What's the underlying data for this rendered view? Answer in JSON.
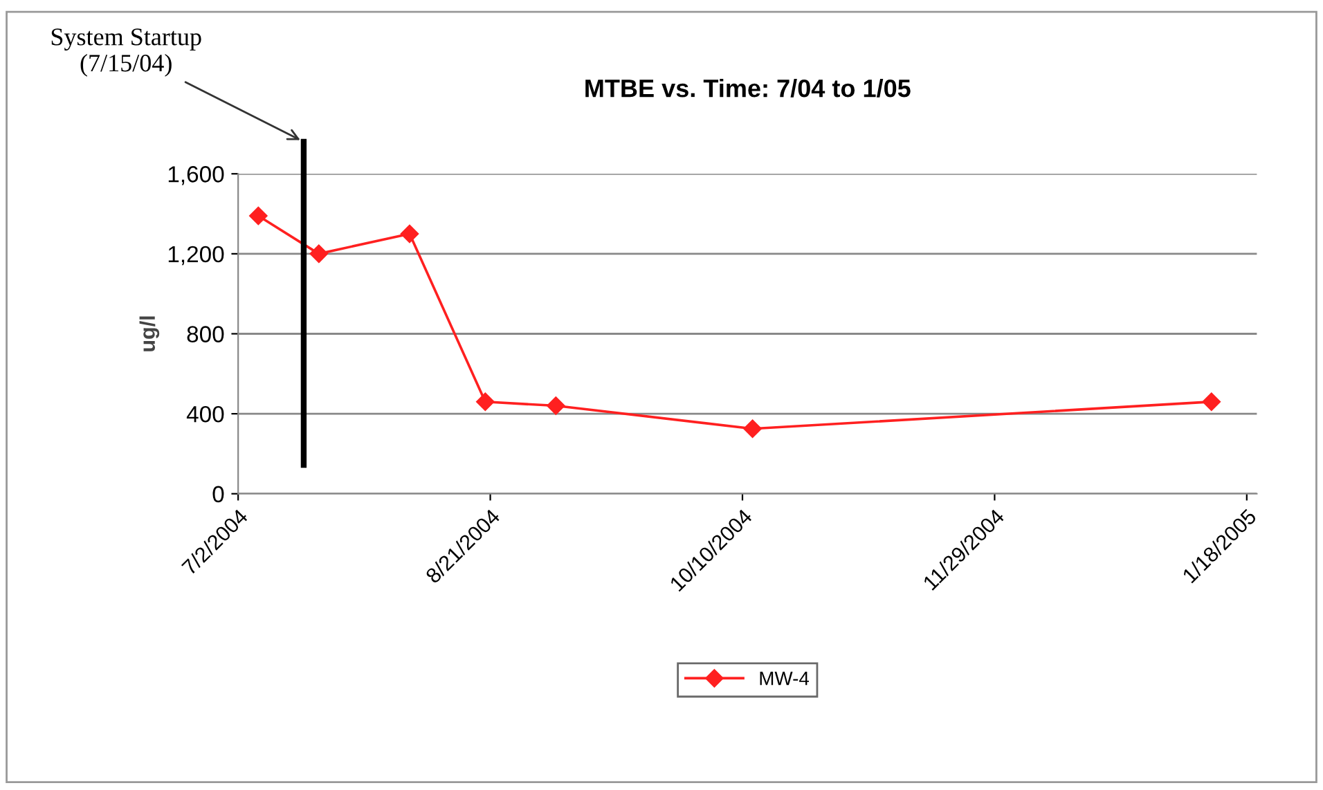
{
  "chart_data": {
    "type": "line",
    "title": "MTBE vs. Time: 7/04 to 1/05",
    "ylabel": "ug/l",
    "x": [
      "2004-07-06",
      "2004-07-18",
      "2004-08-05",
      "2004-08-20",
      "2004-09-03",
      "2004-10-12",
      "2005-01-11"
    ],
    "series": [
      {
        "name": "MW-4",
        "color": "#ff2020",
        "values": [
          1390,
          1200,
          1300,
          460,
          440,
          325,
          460
        ]
      }
    ],
    "xlim": [
      "2004-07-02",
      "2005-01-20"
    ],
    "xticks": [
      {
        "value": "2004-07-02",
        "label": "7/2/2004"
      },
      {
        "value": "2004-08-21",
        "label": "8/21/2004"
      },
      {
        "value": "2004-10-10",
        "label": "10/10/2004"
      },
      {
        "value": "2004-11-29",
        "label": "11/29/2004"
      },
      {
        "value": "2005-01-18",
        "label": "1/18/2005"
      }
    ],
    "ylim": [
      0,
      1600
    ],
    "yticks": [
      {
        "value": 0,
        "label": "0"
      },
      {
        "value": 400,
        "label": "400"
      },
      {
        "value": 800,
        "label": "800"
      },
      {
        "value": 1200,
        "label": "1,200"
      },
      {
        "value": 1600,
        "label": "1,600"
      }
    ],
    "ref_lines": [
      {
        "axis": "x",
        "value": "2004-07-15",
        "label": "System Startup\n(7/15/04)",
        "color": "#000000"
      }
    ],
    "grid": "y",
    "legend": "bottom",
    "marker": "diamond",
    "line_style": "solid"
  }
}
